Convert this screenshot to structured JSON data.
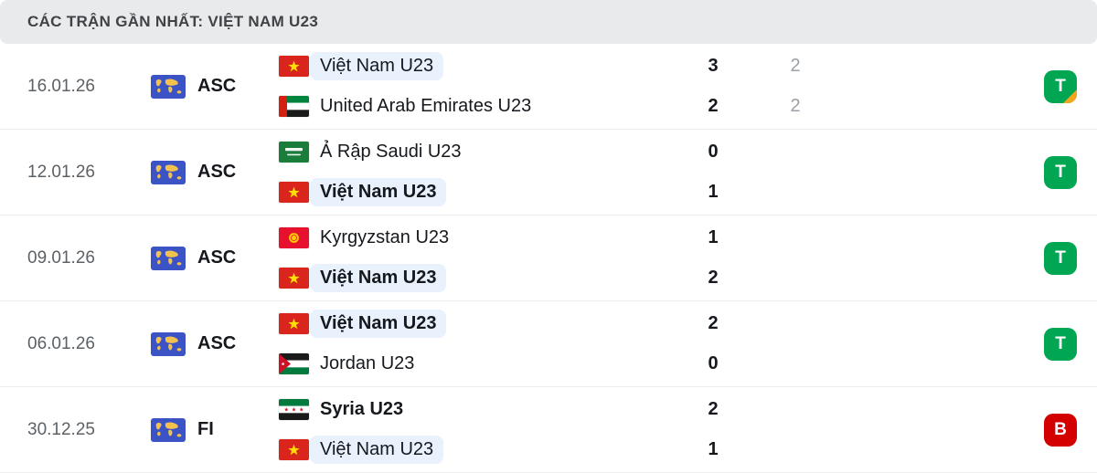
{
  "header": {
    "title": "CÁC TRẬN GẦN NHẤT: VIỆT NAM U23"
  },
  "colors": {
    "win_badge": "#00a651",
    "loss_badge": "#d40000",
    "penalty_corner": "#f3a61d",
    "team_highlight": "#e8f1fc",
    "competition_icon_blue": "#3c53c6"
  },
  "matches": [
    {
      "date": "16.01.26",
      "competition": "ASC",
      "teams": [
        {
          "name": "Việt Nam U23",
          "flag": "vietnam",
          "bold": false,
          "highlight": true,
          "score": "3",
          "score_extra": "2"
        },
        {
          "name": "United Arab Emirates U23",
          "flag": "uae",
          "bold": false,
          "highlight": false,
          "score": "2",
          "score_extra": "2"
        }
      ],
      "result": {
        "label": "T",
        "type": "win",
        "corner": true
      }
    },
    {
      "date": "12.01.26",
      "competition": "ASC",
      "teams": [
        {
          "name": "Ả Rập Saudi U23",
          "flag": "saudi-arabia",
          "bold": false,
          "highlight": false,
          "score": "0",
          "score_extra": ""
        },
        {
          "name": "Việt Nam U23",
          "flag": "vietnam",
          "bold": true,
          "highlight": true,
          "score": "1",
          "score_extra": ""
        }
      ],
      "result": {
        "label": "T",
        "type": "win",
        "corner": false
      }
    },
    {
      "date": "09.01.26",
      "competition": "ASC",
      "teams": [
        {
          "name": "Kyrgyzstan U23",
          "flag": "kyrgyzstan",
          "bold": false,
          "highlight": false,
          "score": "1",
          "score_extra": ""
        },
        {
          "name": "Việt Nam U23",
          "flag": "vietnam",
          "bold": true,
          "highlight": true,
          "score": "2",
          "score_extra": ""
        }
      ],
      "result": {
        "label": "T",
        "type": "win",
        "corner": false
      }
    },
    {
      "date": "06.01.26",
      "competition": "ASC",
      "teams": [
        {
          "name": "Việt Nam U23",
          "flag": "vietnam",
          "bold": true,
          "highlight": true,
          "score": "2",
          "score_extra": ""
        },
        {
          "name": "Jordan U23",
          "flag": "jordan",
          "bold": false,
          "highlight": false,
          "score": "0",
          "score_extra": ""
        }
      ],
      "result": {
        "label": "T",
        "type": "win",
        "corner": false
      }
    },
    {
      "date": "30.12.25",
      "competition": "FI",
      "teams": [
        {
          "name": "Syria U23",
          "flag": "syria",
          "bold": true,
          "highlight": false,
          "score": "2",
          "score_extra": ""
        },
        {
          "name": "Việt Nam U23",
          "flag": "vietnam",
          "bold": false,
          "highlight": true,
          "score": "1",
          "score_extra": ""
        }
      ],
      "result": {
        "label": "B",
        "type": "loss",
        "corner": false
      }
    }
  ]
}
